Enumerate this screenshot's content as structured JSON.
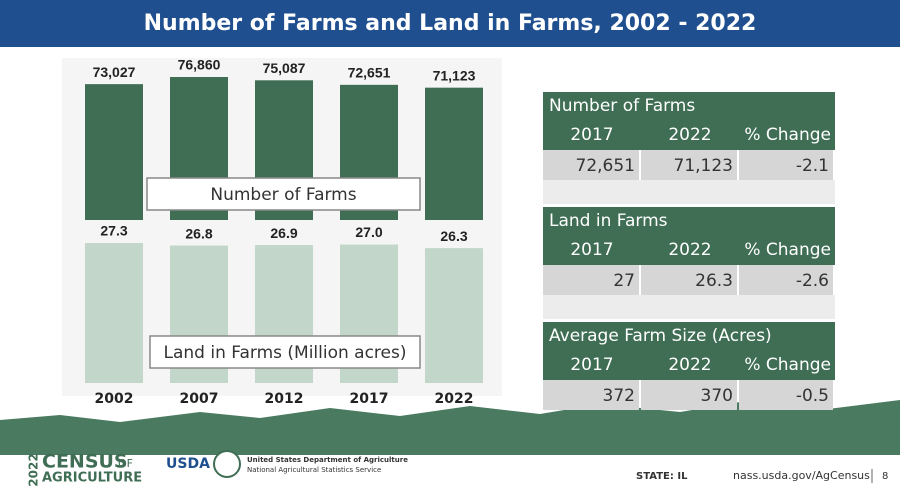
{
  "title": "Number of Farms and Land in Farms, 2002 - 2022",
  "chart_data": {
    "type": "bar",
    "categories": [
      "2002",
      "2007",
      "2012",
      "2017",
      "2022"
    ],
    "series": [
      {
        "name": "Number of Farms",
        "color": "#3f6e54",
        "values": [
          73027,
          76860,
          75087,
          72651,
          71123
        ],
        "value_labels": [
          "73,027",
          "76,860",
          "75,087",
          "72,651",
          "71,123"
        ]
      },
      {
        "name": "Land in Farms (Million acres)",
        "color": "#c2d7ca",
        "values": [
          27.3,
          26.8,
          26.9,
          27.0,
          26.3
        ],
        "value_labels": [
          "27.3",
          "26.8",
          "26.9",
          "27.0",
          "26.3"
        ]
      }
    ]
  },
  "tables": [
    {
      "title": "Number of Farms",
      "columns": [
        "2017",
        "2022",
        "% Change"
      ],
      "rows": [
        [
          "72,651",
          "71,123",
          -2.1
        ]
      ]
    },
    {
      "title": "Land in Farms",
      "columns": [
        "2017",
        "2022",
        "% Change"
      ],
      "rows": [
        [
          27,
          26.3,
          -2.6
        ]
      ]
    },
    {
      "title": "Average Farm Size (Acres)",
      "columns": [
        "2017",
        "2022",
        "% Change"
      ],
      "rows": [
        [
          372,
          370,
          -0.5
        ]
      ]
    }
  ],
  "footer": {
    "year": "2022",
    "census": "CENSUS",
    "of": "OF",
    "agriculture": "AGRICULTURE",
    "usda": "USDA",
    "dept": "United States Department of Agriculture",
    "service": "National Agricultural Statistics Service",
    "state": "STATE: IL",
    "url": "nass.usda.gov/AgCensus",
    "page": "8"
  }
}
